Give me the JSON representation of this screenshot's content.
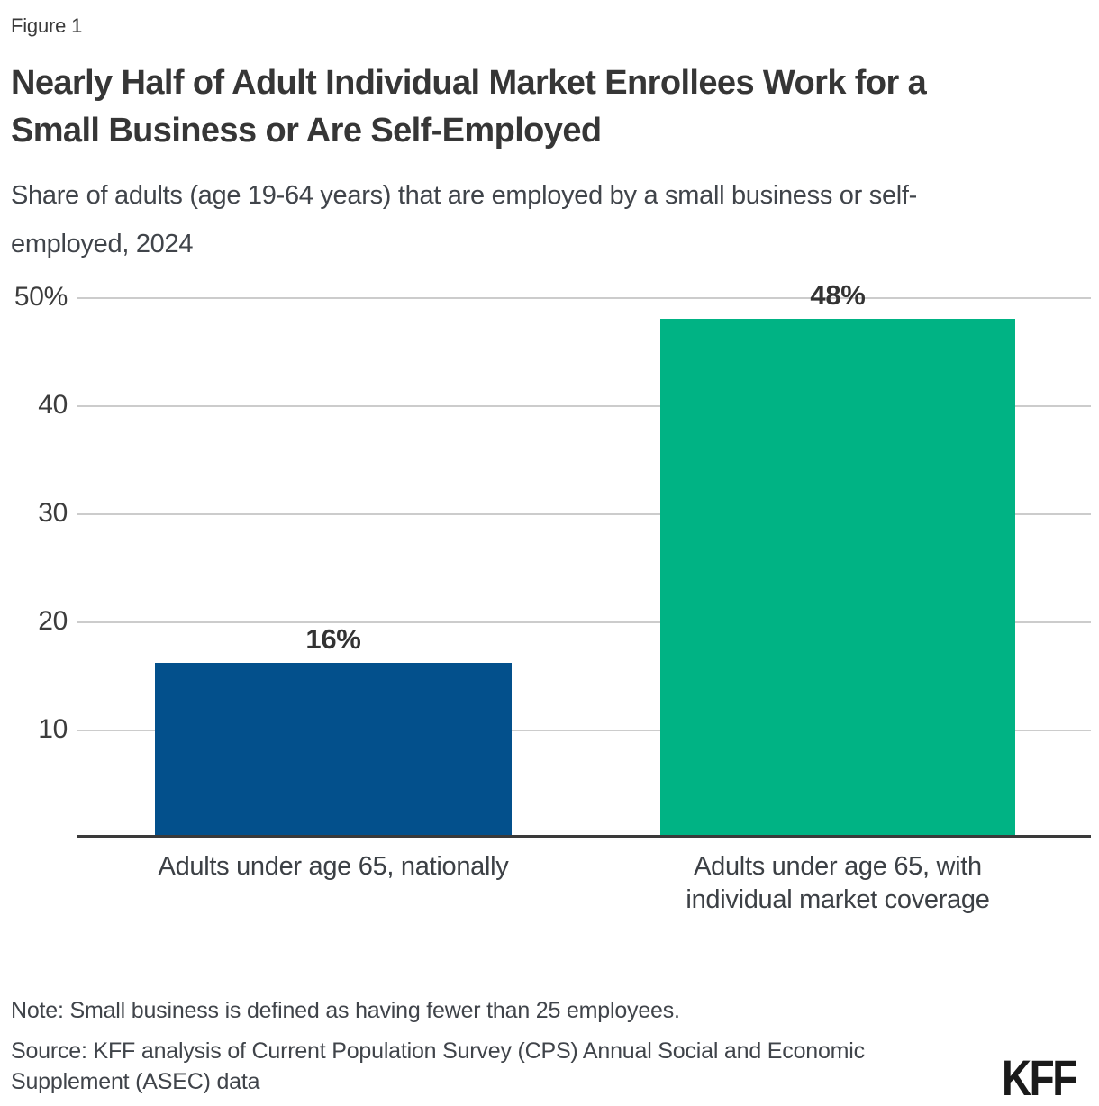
{
  "figure_label": "Figure 1",
  "header": {
    "title_lines": [
      "Nearly Half of Adult Individual Market Enrollees Work for a",
      "Small Business or Are Self-Employed"
    ],
    "subtitle_lines": [
      "Share of adults (age 19-64 years) that are employed by a small business or self-",
      "employed, 2024"
    ]
  },
  "chart_data": {
    "type": "bar",
    "title": "Nearly Half of Adult Individual Market Enrollees Work for a Small Business or Are Self-Employed",
    "subtitle": "Share of adults (age 19-64 years) that are employed by a small business or self-employed, 2024",
    "categories": [
      "Adults under age 65, nationally",
      "Adults under age 65, with individual market coverage"
    ],
    "values": [
      16,
      48
    ],
    "value_labels": [
      "16%",
      "48%"
    ],
    "bar_colors": [
      "#03508C",
      "#00B384"
    ],
    "xlabel": "",
    "ylabel": "",
    "ylim": [
      0,
      50
    ],
    "ytick_interval": 10,
    "ytick_labels": [
      "50%",
      "40",
      "30",
      "20",
      "10"
    ],
    "grid": "horizontal",
    "legend": "none"
  },
  "axis": {
    "category_label_lines": [
      [
        "Adults under age 65, nationally"
      ],
      [
        "Adults under age 65, with",
        "individual market coverage"
      ]
    ]
  },
  "footer": {
    "note": "Note: Small business is defined as having fewer than 25 employees.",
    "source_lines": [
      "Source: KFF analysis of Current Population Survey (CPS) Annual Social and Economic",
      "Supplement (ASEC) data"
    ],
    "logo_text": "KFF"
  },
  "colors": {
    "bar_blue": "#03508C",
    "bar_green": "#00B384",
    "gridline": "#CCCCCC",
    "axis_line": "#3A3A3A",
    "title_text": "#363636",
    "body_text": "#40444A"
  }
}
